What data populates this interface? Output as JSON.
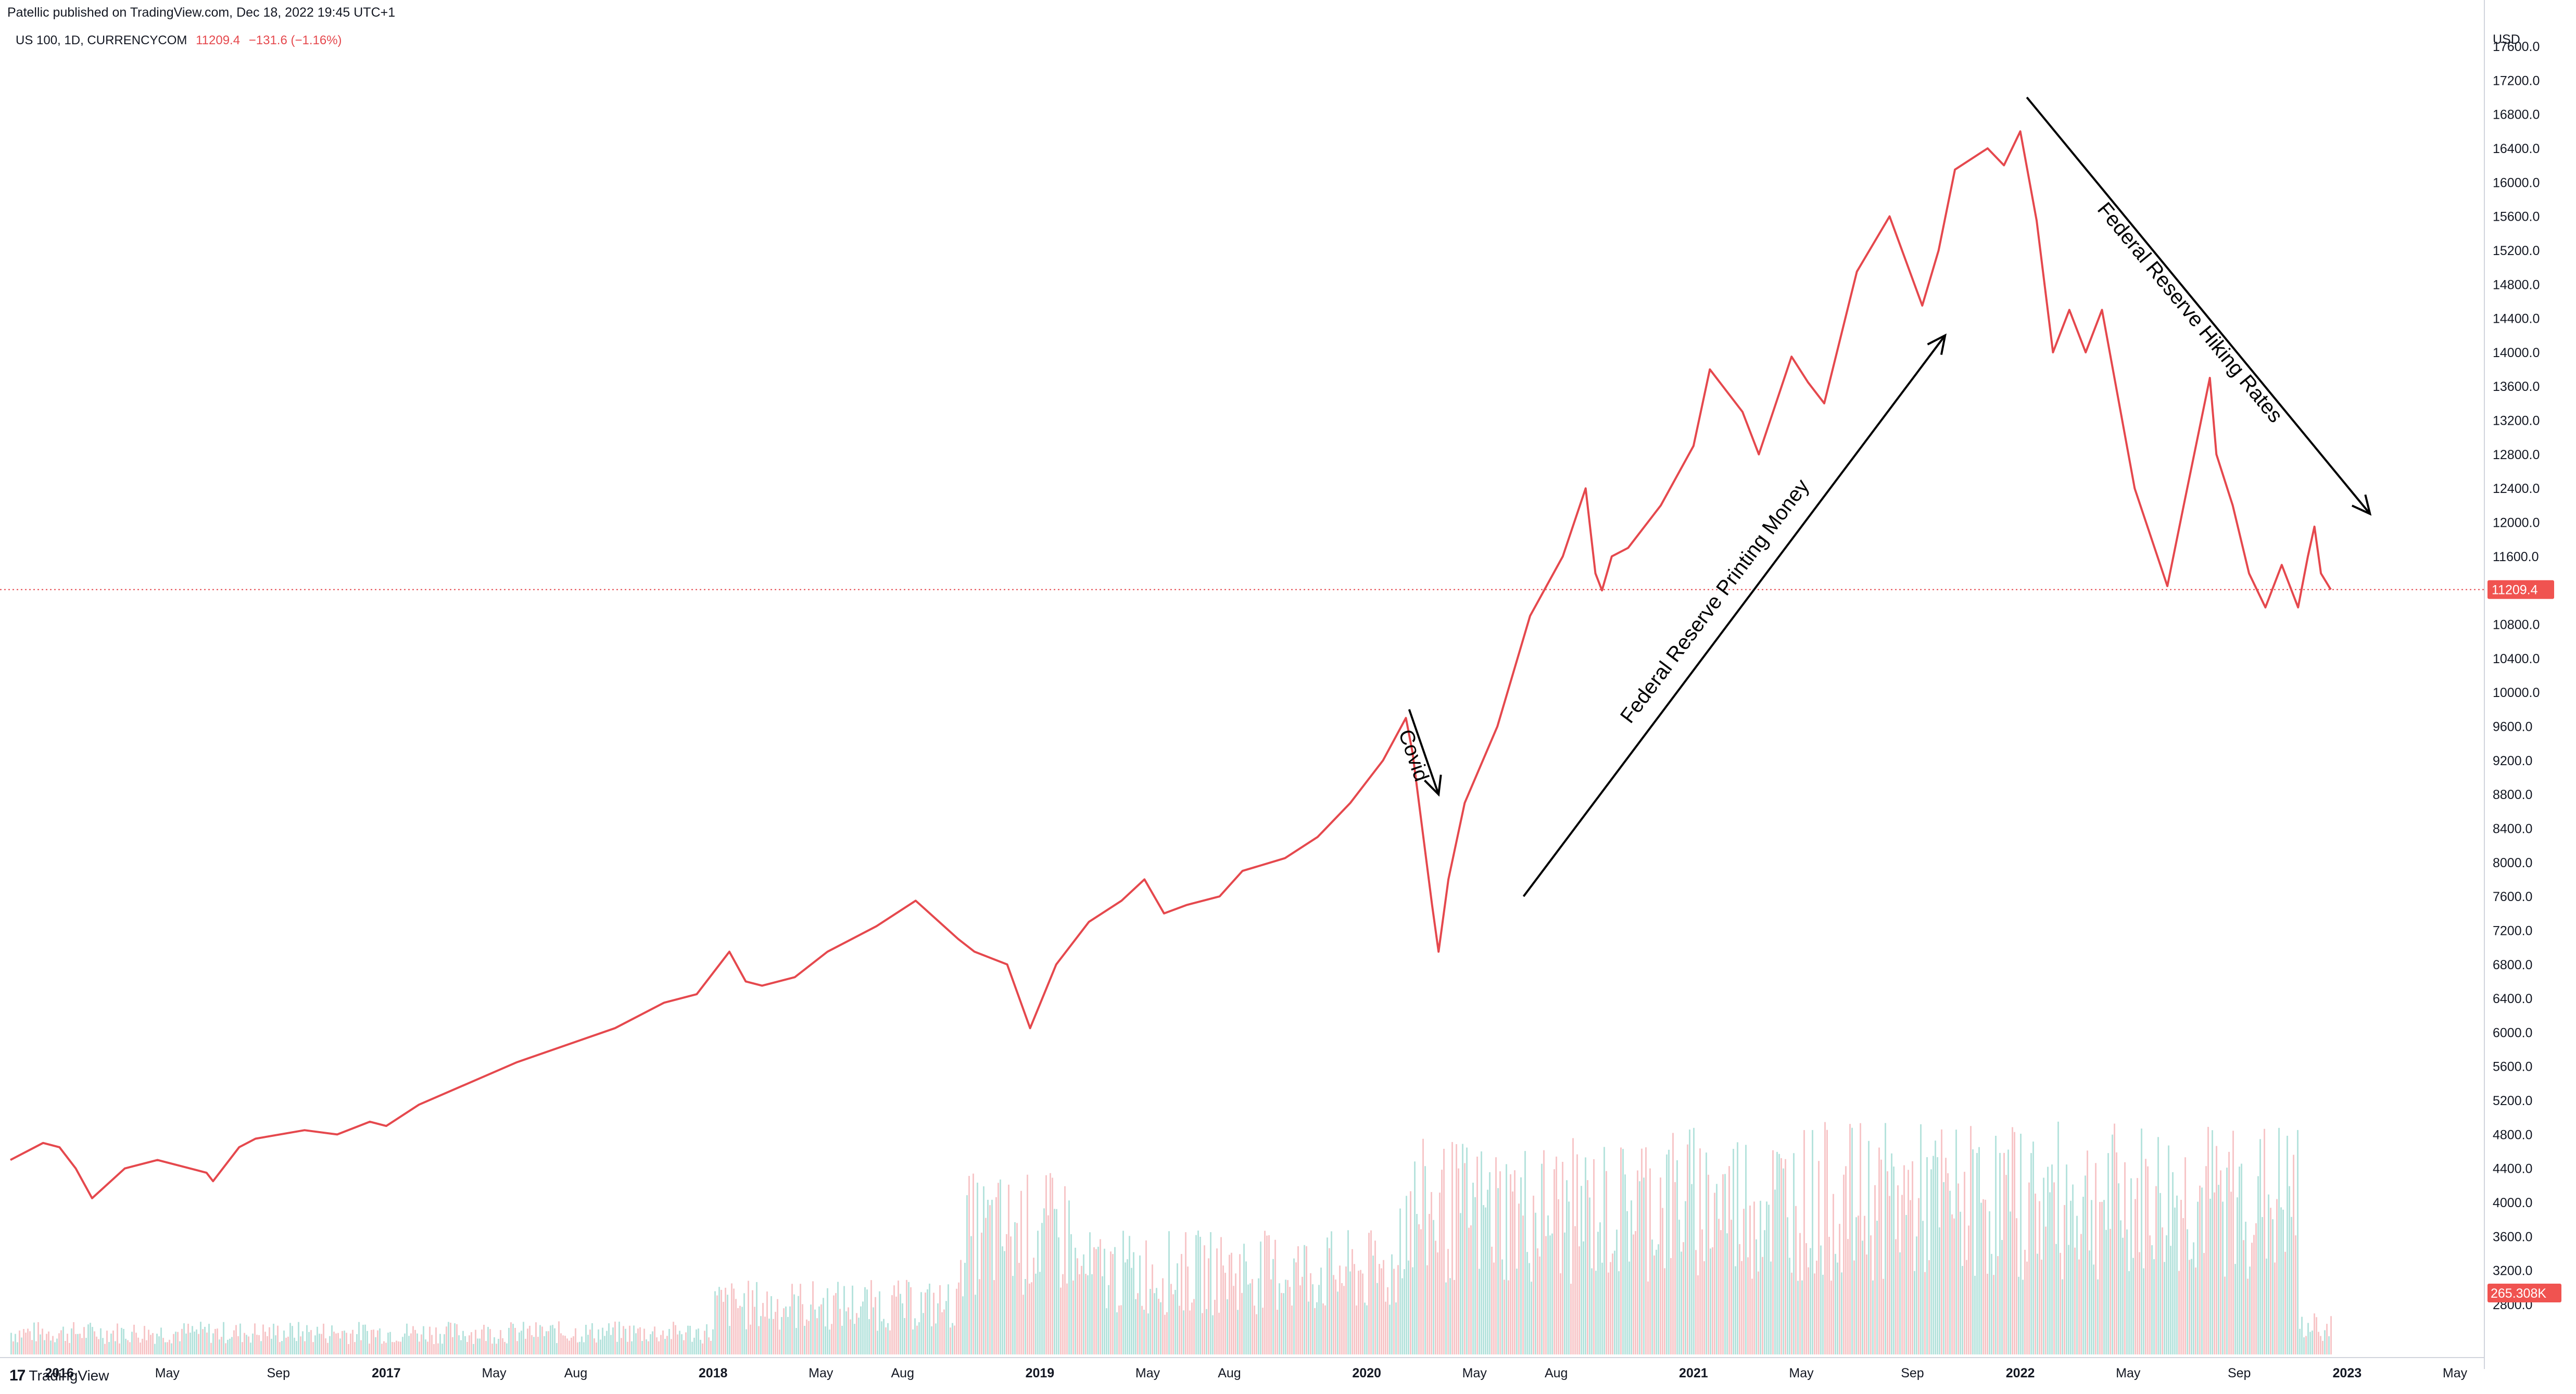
{
  "header": {
    "published_note": "Patellic published on TradingView.com, Dec 18, 2022 19:45 UTC+1",
    "symbol_label": "US 100, 1D, CURRENCYCOM",
    "last_value": "11209.4",
    "change": "−131.6 (−1.16%)"
  },
  "footer": {
    "logo_text": "TradingView",
    "logo_mark": "17"
  },
  "colors": {
    "line": "#e5484d",
    "last_bg": "#f05350",
    "vol_up": "#b6e3dd",
    "vol_down": "#f7c6c8",
    "grid": "#d1d4dc"
  },
  "chart_data": {
    "type": "line",
    "title": "US 100, 1D, CURRENCYCOM",
    "xlabel": "",
    "ylabel": "USD",
    "y_unit": "USD",
    "ylim": [
      2500,
      17900
    ],
    "x_range": [
      2015.85,
      2023.42
    ],
    "y_ticks": [
      2800,
      3200,
      3600,
      4000,
      4400,
      4800,
      5200,
      5600,
      6000,
      6400,
      6800,
      7200,
      7600,
      8000,
      8400,
      8800,
      9200,
      9600,
      10000,
      10400,
      10800,
      11200,
      11600,
      12000,
      12400,
      12800,
      13200,
      13600,
      14000,
      14400,
      14800,
      15200,
      15600,
      16000,
      16400,
      16800,
      17200,
      17600
    ],
    "x_ticks": [
      {
        "label": "2016",
        "x": 2016.0,
        "year": true
      },
      {
        "label": "May",
        "x": 2016.33,
        "year": false
      },
      {
        "label": "Sep",
        "x": 2016.67,
        "year": false
      },
      {
        "label": "2017",
        "x": 2017.0,
        "year": true
      },
      {
        "label": "May",
        "x": 2017.33,
        "year": false
      },
      {
        "label": "Aug",
        "x": 2017.58,
        "year": false
      },
      {
        "label": "2018",
        "x": 2018.0,
        "year": true
      },
      {
        "label": "May",
        "x": 2018.33,
        "year": false
      },
      {
        "label": "Aug",
        "x": 2018.58,
        "year": false
      },
      {
        "label": "2019",
        "x": 2019.0,
        "year": true
      },
      {
        "label": "May",
        "x": 2019.33,
        "year": false
      },
      {
        "label": "Aug",
        "x": 2019.58,
        "year": false
      },
      {
        "label": "2020",
        "x": 2020.0,
        "year": true
      },
      {
        "label": "May",
        "x": 2020.33,
        "year": false
      },
      {
        "label": "Aug",
        "x": 2020.58,
        "year": false
      },
      {
        "label": "2021",
        "x": 2021.0,
        "year": true
      },
      {
        "label": "May",
        "x": 2021.33,
        "year": false
      },
      {
        "label": "Sep",
        "x": 2021.67,
        "year": false
      },
      {
        "label": "2022",
        "x": 2022.0,
        "year": true
      },
      {
        "label": "May",
        "x": 2022.33,
        "year": false
      },
      {
        "label": "Sep",
        "x": 2022.67,
        "year": false
      },
      {
        "label": "2023",
        "x": 2023.0,
        "year": true
      },
      {
        "label": "May",
        "x": 2023.33,
        "year": false
      }
    ],
    "series": [
      {
        "name": "US 100 close",
        "x": [
          2015.85,
          2015.95,
          2016.0,
          2016.05,
          2016.1,
          2016.2,
          2016.3,
          2016.45,
          2016.47,
          2016.55,
          2016.6,
          2016.75,
          2016.85,
          2016.95,
          2017.0,
          2017.1,
          2017.25,
          2017.4,
          2017.55,
          2017.7,
          2017.85,
          2017.95,
          2018.05,
          2018.1,
          2018.15,
          2018.25,
          2018.35,
          2018.5,
          2018.62,
          2018.75,
          2018.8,
          2018.9,
          2018.97,
          2019.05,
          2019.15,
          2019.25,
          2019.32,
          2019.38,
          2019.45,
          2019.55,
          2019.62,
          2019.75,
          2019.85,
          2019.95,
          2020.05,
          2020.12,
          2020.14,
          2020.2,
          2020.22,
          2020.25,
          2020.3,
          2020.4,
          2020.5,
          2020.6,
          2020.67,
          2020.7,
          2020.72,
          2020.75,
          2020.8,
          2020.9,
          2021.0,
          2021.05,
          2021.15,
          2021.2,
          2021.3,
          2021.35,
          2021.4,
          2021.5,
          2021.6,
          2021.7,
          2021.75,
          2021.8,
          2021.9,
          2021.95,
          2022.0,
          2022.05,
          2022.1,
          2022.15,
          2022.2,
          2022.25,
          2022.35,
          2022.45,
          2022.5,
          2022.58,
          2022.6,
          2022.65,
          2022.7,
          2022.75,
          2022.8,
          2022.85,
          2022.88,
          2022.9,
          2022.92,
          2022.95
        ],
        "values": [
          4500,
          4700,
          4650,
          4400,
          4050,
          4400,
          4500,
          4350,
          4250,
          4650,
          4750,
          4850,
          4800,
          4950,
          4900,
          5150,
          5400,
          5650,
          5850,
          6050,
          6350,
          6450,
          6950,
          6600,
          6550,
          6650,
          6950,
          7250,
          7550,
          7100,
          6950,
          6800,
          6050,
          6800,
          7300,
          7550,
          7800,
          7400,
          7500,
          7600,
          7900,
          8050,
          8300,
          8700,
          9200,
          9700,
          9300,
          7500,
          6950,
          7800,
          8700,
          9600,
          10900,
          11600,
          12400,
          11400,
          11200,
          11600,
          11700,
          12200,
          12900,
          13800,
          13300,
          12800,
          13950,
          13650,
          13400,
          14950,
          15600,
          14550,
          15200,
          16150,
          16400,
          16200,
          16600,
          15550,
          14000,
          14500,
          14000,
          14500,
          12400,
          11250,
          12200,
          13700,
          12800,
          12200,
          11400,
          11000,
          11500,
          11000,
          11600,
          11950,
          11400,
          11209.4
        ]
      }
    ],
    "last_price": 11209.4,
    "volume_last_label": "265.308K",
    "annotations": [
      {
        "text": "Covid",
        "from": [
          2020.13,
          9800
        ],
        "to": [
          2020.22,
          8800
        ]
      },
      {
        "text": "Federal Reserve Printing Money",
        "from": [
          2020.48,
          7600
        ],
        "to": [
          2021.77,
          14200
        ]
      },
      {
        "text": "Federal Reserve Hiking Rates",
        "from": [
          2022.02,
          17000
        ],
        "to": [
          2023.07,
          12100
        ]
      }
    ]
  }
}
